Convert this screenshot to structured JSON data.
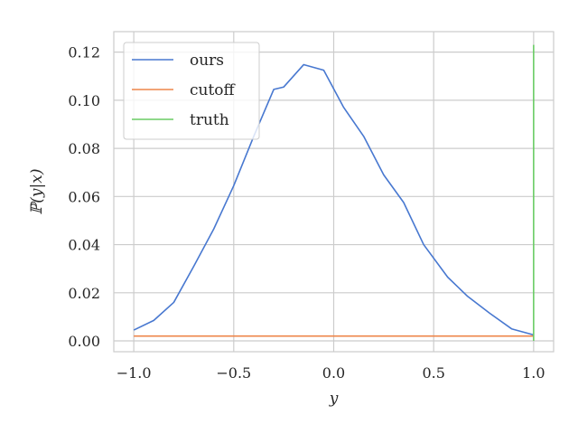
{
  "chart_data": {
    "type": "line",
    "title": "",
    "xlabel": "y",
    "ylabel": "ℙ(y|x)",
    "xlim": [
      -1.1,
      1.1
    ],
    "ylim": [
      -0.0045,
      0.1285
    ],
    "xticks": [
      -1.0,
      -0.5,
      0.0,
      0.5,
      1.0
    ],
    "xtick_labels": [
      "−1.0",
      "−0.5",
      "0.0",
      "0.5",
      "1.0"
    ],
    "yticks": [
      0.0,
      0.02,
      0.04,
      0.06,
      0.08,
      0.1,
      0.12
    ],
    "ytick_labels": [
      "0.00",
      "0.02",
      "0.04",
      "0.06",
      "0.08",
      "0.10",
      "0.12"
    ],
    "grid": true,
    "legend_position": "top-left",
    "series": [
      {
        "name": "ours",
        "color": "#4878d0",
        "x": [
          -1.0,
          -0.9,
          -0.8,
          -0.7,
          -0.6,
          -0.5,
          -0.4,
          -0.3,
          -0.25,
          -0.15,
          -0.05,
          0.05,
          0.15,
          0.25,
          0.35,
          0.45,
          0.57,
          0.67,
          0.78,
          0.89,
          1.0
        ],
        "y": [
          0.0045,
          0.0085,
          0.016,
          0.031,
          0.0465,
          0.0645,
          0.085,
          0.1045,
          0.1055,
          0.1148,
          0.1125,
          0.097,
          0.085,
          0.069,
          0.0575,
          0.04,
          0.0265,
          0.0185,
          0.0115,
          0.005,
          0.0025
        ]
      },
      {
        "name": "cutoff",
        "color": "#ee854a",
        "x": [
          -1.0,
          1.0
        ],
        "y": [
          0.002,
          0.002
        ]
      },
      {
        "name": "truth",
        "color": "#6acc64",
        "x": [
          1.0,
          1.0
        ],
        "y": [
          0.0,
          0.123
        ]
      }
    ]
  }
}
